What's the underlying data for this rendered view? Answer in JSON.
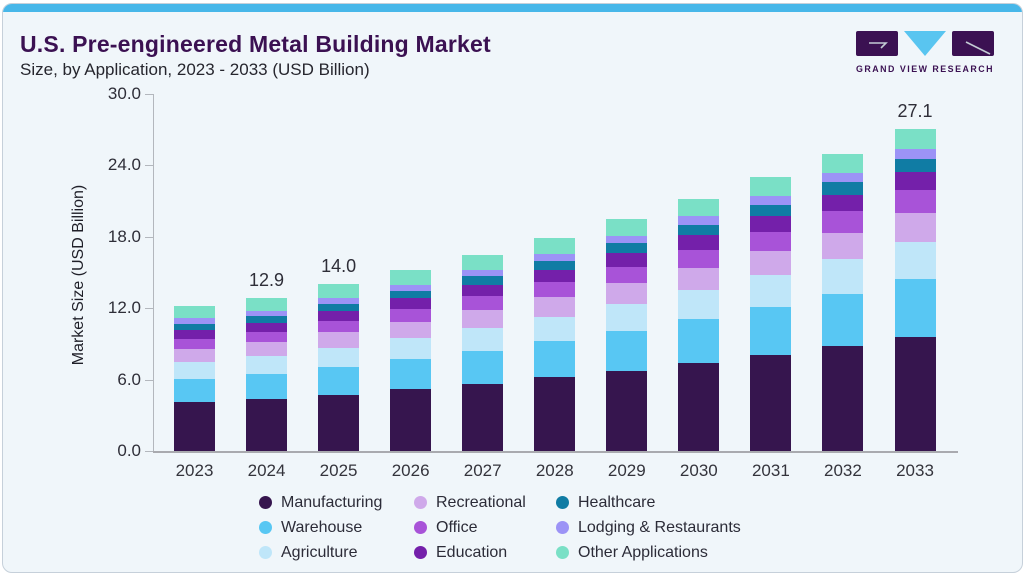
{
  "header": {
    "title": "U.S. Pre-engineered Metal Building Market",
    "subtitle": "Size, by Application, 2023 - 2033 (USD Billion)",
    "logo_text": "GRAND VIEW RESEARCH"
  },
  "colors": {
    "accent_strip": "#47b7e9",
    "card_bg": "#f0f6fa",
    "title_text": "#3b1152",
    "logo_purple": "#3b1152",
    "logo_cyan": "#59c5f0",
    "axis_line": "#b3b7bd"
  },
  "chart_data": {
    "type": "bar",
    "stacked": true,
    "title": "U.S. Pre-engineered Metal Building Market Size, by Application, 2023 - 2033 (USD Billion)",
    "xlabel": "",
    "ylabel": "Market Size (USD Billion)",
    "ylim": [
      0,
      30
    ],
    "y_ticks": [
      "0.0",
      "6.0",
      "12.0",
      "18.0",
      "24.0",
      "30.0"
    ],
    "grid": false,
    "legend_position": "bottom",
    "categories": [
      "2023",
      "2024",
      "2025",
      "2026",
      "2027",
      "2028",
      "2029",
      "2030",
      "2031",
      "2032",
      "2033"
    ],
    "series": [
      {
        "name": "Manufacturing",
        "color": "#36154e",
        "values": [
          4.1,
          4.35,
          4.74,
          5.2,
          5.66,
          6.18,
          6.76,
          7.39,
          8.06,
          8.8,
          9.6
        ]
      },
      {
        "name": "Warehouse",
        "color": "#58c7f3",
        "values": [
          1.96,
          2.1,
          2.32,
          2.53,
          2.78,
          3.04,
          3.35,
          3.68,
          4.03,
          4.43,
          4.85
        ]
      },
      {
        "name": "Agriculture",
        "color": "#bfe6f9",
        "values": [
          1.42,
          1.5,
          1.62,
          1.76,
          1.91,
          2.08,
          2.26,
          2.46,
          2.67,
          2.9,
          3.14
        ]
      },
      {
        "name": "Recreational",
        "color": "#cfa9ea",
        "values": [
          1.12,
          1.18,
          1.28,
          1.38,
          1.49,
          1.61,
          1.75,
          1.89,
          2.04,
          2.21,
          2.38
        ]
      },
      {
        "name": "Office",
        "color": "#a853d8",
        "values": [
          0.84,
          0.89,
          0.97,
          1.06,
          1.16,
          1.26,
          1.38,
          1.51,
          1.64,
          1.79,
          1.95
        ]
      },
      {
        "name": "Education",
        "color": "#7420aa",
        "values": [
          0.73,
          0.77,
          0.83,
          0.89,
          0.96,
          1.04,
          1.12,
          1.21,
          1.31,
          1.41,
          1.53
        ]
      },
      {
        "name": "Healthcare",
        "color": "#107ca4",
        "values": [
          0.54,
          0.56,
          0.61,
          0.66,
          0.71,
          0.76,
          0.82,
          0.89,
          0.96,
          1.03,
          1.11
        ]
      },
      {
        "name": "Lodging & Restaurants",
        "color": "#9c93f6",
        "values": [
          0.43,
          0.45,
          0.48,
          0.51,
          0.55,
          0.59,
          0.64,
          0.68,
          0.73,
          0.79,
          0.85
        ]
      },
      {
        "name": "Other Applications",
        "color": "#7ae0c6",
        "values": [
          1.06,
          1.09,
          1.15,
          1.21,
          1.28,
          1.34,
          1.42,
          1.49,
          1.56,
          1.64,
          1.69
        ]
      }
    ],
    "bar_total_labels": {
      "2024": "12.9",
      "2025": "14.0",
      "2033": "27.1"
    },
    "legend_display_order": [
      "Manufacturing",
      "Recreational",
      "Healthcare",
      "Warehouse",
      "Office",
      "Lodging & Restaurants",
      "Agriculture",
      "Education",
      "Other Applications"
    ]
  }
}
